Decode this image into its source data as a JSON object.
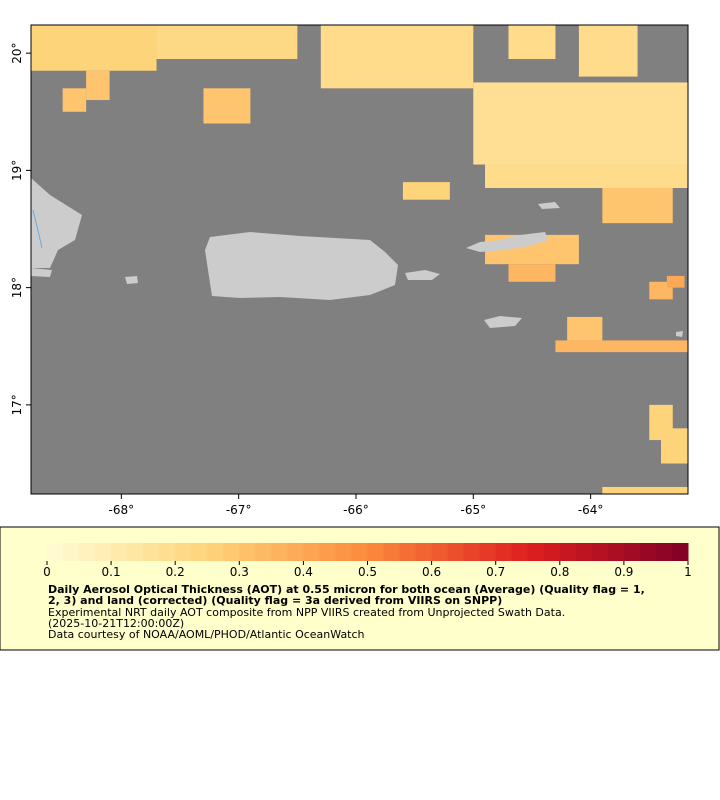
{
  "map": {
    "lonlim": [
      -68.77,
      -63.17
    ],
    "latlim": [
      16.24,
      20.24
    ],
    "xticks": [
      {
        "value": -68,
        "label": "-68°"
      },
      {
        "value": -67,
        "label": "-67°"
      },
      {
        "value": -66,
        "label": "-66°"
      },
      {
        "value": -65,
        "label": "-65°"
      },
      {
        "value": -64,
        "label": "-64°"
      }
    ],
    "yticks": [
      {
        "value": 20,
        "label": "20°"
      },
      {
        "value": 19,
        "label": "19°"
      },
      {
        "value": 18,
        "label": "18°"
      },
      {
        "value": 17,
        "label": "17°"
      }
    ],
    "ocean_color": "#808080",
    "land_color": "#cccccc",
    "cells": [
      {
        "lon": [
          -68.77,
          -67.7
        ],
        "lat": [
          19.85,
          20.24
        ],
        "value": 0.25
      },
      {
        "lon": [
          -68.3,
          -68.1
        ],
        "lat": [
          19.6,
          19.85
        ],
        "value": 0.3
      },
      {
        "lon": [
          -68.5,
          -68.3
        ],
        "lat": [
          19.5,
          19.7
        ],
        "value": 0.3
      },
      {
        "lon": [
          -67.7,
          -66.5
        ],
        "lat": [
          19.95,
          20.24
        ],
        "value": 0.22
      },
      {
        "lon": [
          -66.3,
          -65.0
        ],
        "lat": [
          19.7,
          20.24
        ],
        "value": 0.2
      },
      {
        "lon": [
          -67.3,
          -66.9
        ],
        "lat": [
          19.4,
          19.7
        ],
        "value": 0.3
      },
      {
        "lon": [
          -65.0,
          -63.17
        ],
        "lat": [
          19.05,
          19.75
        ],
        "value": 0.18
      },
      {
        "lon": [
          -64.9,
          -63.17
        ],
        "lat": [
          18.85,
          19.05
        ],
        "value": 0.2
      },
      {
        "lon": [
          -64.7,
          -64.3
        ],
        "lat": [
          19.95,
          20.24
        ],
        "value": 0.2
      },
      {
        "lon": [
          -64.1,
          -63.6
        ],
        "lat": [
          19.8,
          20.24
        ],
        "value": 0.2
      },
      {
        "lon": [
          -65.6,
          -65.2
        ],
        "lat": [
          18.75,
          18.9
        ],
        "value": 0.25
      },
      {
        "lon": [
          -63.9,
          -63.3
        ],
        "lat": [
          18.55,
          18.85
        ],
        "value": 0.3
      },
      {
        "lon": [
          -64.9,
          -64.1
        ],
        "lat": [
          18.2,
          18.45
        ],
        "value": 0.3
      },
      {
        "lon": [
          -64.7,
          -64.3
        ],
        "lat": [
          18.05,
          18.2
        ],
        "value": 0.35
      },
      {
        "lon": [
          -63.5,
          -63.3
        ],
        "lat": [
          17.9,
          18.05
        ],
        "value": 0.35
      },
      {
        "lon": [
          -63.35,
          -63.2
        ],
        "lat": [
          18.0,
          18.1
        ],
        "value": 0.4
      },
      {
        "lon": [
          -64.2,
          -63.9
        ],
        "lat": [
          17.55,
          17.75
        ],
        "value": 0.3
      },
      {
        "lon": [
          -64.3,
          -63.17
        ],
        "lat": [
          17.45,
          17.55
        ],
        "value": 0.35
      },
      {
        "lon": [
          -63.5,
          -63.3
        ],
        "lat": [
          16.7,
          17.0
        ],
        "value": 0.25
      },
      {
        "lon": [
          -63.4,
          -63.17
        ],
        "lat": [
          16.5,
          16.8
        ],
        "value": 0.25
      },
      {
        "lon": [
          -63.9,
          -63.17
        ],
        "lat": [
          16.24,
          16.3
        ],
        "value": 0.25
      }
    ]
  },
  "colorbar": {
    "range": [
      0,
      1
    ],
    "step": 0.025,
    "ticks": [
      0,
      0.1,
      0.2,
      0.3,
      0.4,
      0.5,
      0.6,
      0.7,
      0.8,
      0.9,
      1
    ],
    "color_stops": [
      [
        0,
        "#fffcd5"
      ],
      [
        0.25,
        "#fed47a"
      ],
      [
        0.5,
        "#fc8a3c"
      ],
      [
        0.75,
        "#df1f1f"
      ],
      [
        1,
        "#800026"
      ]
    ],
    "background": "#ffffcc"
  },
  "caption": {
    "title_lines": [
      "Daily Aerosol Optical Thickness (AOT) at 0.55 micron for both ocean (Average) (Quality flag = 1,",
      "2, 3) and land (corrected) (Quality flag = 3a derived from VIIRS on SNPP)"
    ],
    "lines": [
      "Experimental NRT daily AOT composite from NPP VIIRS created from Unprojected Swath Data.",
      "(2025-10-21T12:00:00Z)",
      "Data courtesy of NOAA/AOML/PHOD/Atlantic OceanWatch"
    ]
  }
}
